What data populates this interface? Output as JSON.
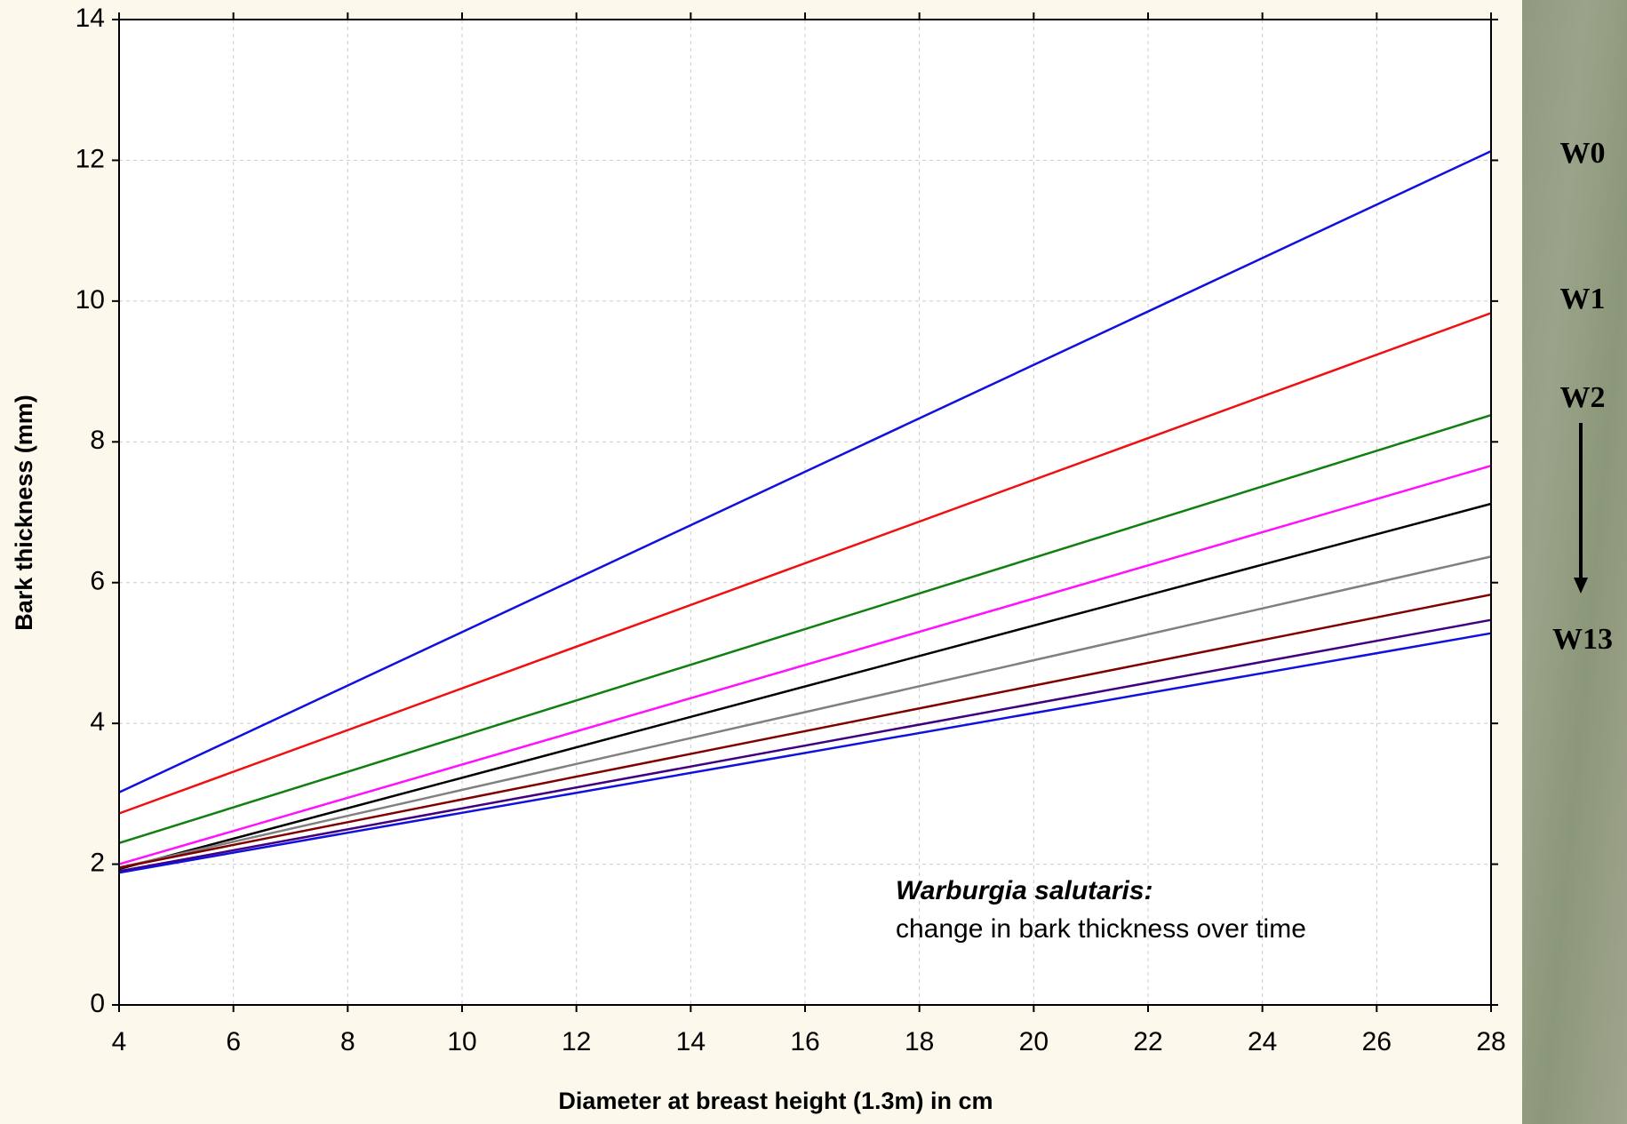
{
  "chart_data": {
    "type": "line",
    "xlabel": "Diameter at breast height (1.3m) in cm",
    "ylabel": "Bark thickness (mm)",
    "annotation": {
      "title": "Warburgia salutaris:",
      "text": "change in bark thickness over time"
    },
    "side_labels": [
      "W0",
      "W1",
      "W2",
      "W13"
    ],
    "x": [
      4,
      28
    ],
    "series": [
      {
        "color": "#1010e0",
        "values": [
          3.02,
          12.13
        ]
      },
      {
        "color": "#f01010",
        "values": [
          2.72,
          9.83
        ]
      },
      {
        "color": "#108010",
        "values": [
          2.3,
          8.38
        ]
      },
      {
        "color": "#ff10ff",
        "values": [
          2.0,
          7.66
        ]
      },
      {
        "color": "#000000",
        "values": [
          1.93,
          7.12
        ]
      },
      {
        "color": "#808080",
        "values": [
          1.95,
          6.37
        ]
      },
      {
        "color": "#800000",
        "values": [
          1.95,
          5.83
        ]
      },
      {
        "color": "#400080",
        "values": [
          1.9,
          5.47
        ]
      },
      {
        "color": "#1010e0",
        "values": [
          1.88,
          5.28
        ]
      }
    ],
    "xlim": [
      4,
      28
    ],
    "xticks": [
      4,
      6,
      8,
      10,
      12,
      14,
      16,
      18,
      20,
      22,
      24,
      26,
      28
    ],
    "ylim": [
      0,
      14
    ],
    "yticks": [
      0,
      2,
      4,
      6,
      8,
      10,
      12,
      14
    ],
    "grid": true
  }
}
